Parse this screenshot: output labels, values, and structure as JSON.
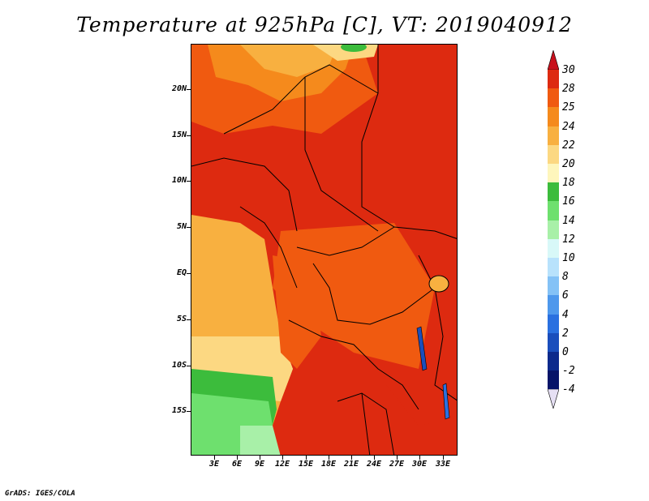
{
  "title": "Temperature at 925hPa [C], VT: 2019040912",
  "credit": "GrADS: IGES/COLA",
  "map": {
    "lat_labels": [
      "20N",
      "15N",
      "10N",
      "5N",
      "EQ",
      "5S",
      "10S",
      "15S"
    ],
    "lon_labels": [
      "3E",
      "6E",
      "9E",
      "12E",
      "15E",
      "18E",
      "21E",
      "24E",
      "27E",
      "30E",
      "33E"
    ]
  },
  "colorbar": {
    "levels": [
      "30",
      "28",
      "25",
      "24",
      "22",
      "20",
      "18",
      "16",
      "14",
      "12",
      "10",
      "8",
      "6",
      "4",
      "2",
      "0",
      "-2",
      "-4"
    ],
    "colors": [
      "#c8101c",
      "#dd2a10",
      "#f05a10",
      "#f58a1c",
      "#f8b040",
      "#fcd882",
      "#fef6bc",
      "#3cbc3c",
      "#6ee06e",
      "#a8f0a8",
      "#d8f8f8",
      "#b8e2fc",
      "#84c2f6",
      "#4e98ec",
      "#2a70e0",
      "#1a4ebc",
      "#0c2a8c",
      "#061468",
      "#e6e0f4"
    ]
  }
}
